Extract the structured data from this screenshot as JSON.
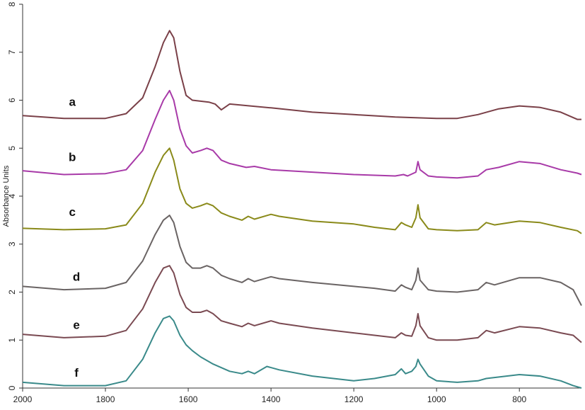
{
  "chart_data": {
    "type": "line",
    "title": "",
    "xlabel": "",
    "ylabel": "Absorbance Units",
    "xlim": [
      2000,
      650
    ],
    "ylim": [
      0,
      8
    ],
    "x_reversed": true,
    "grid": false,
    "xticks": [
      2000,
      1800,
      1600,
      1400,
      1200,
      1000,
      800
    ],
    "yticks": [
      0,
      1,
      2,
      3,
      4,
      5,
      6,
      7,
      8
    ],
    "series": [
      {
        "name": "a",
        "color": "#7a4048",
        "points": [
          [
            2000,
            5.68
          ],
          [
            1900,
            5.62
          ],
          [
            1800,
            5.62
          ],
          [
            1750,
            5.72
          ],
          [
            1710,
            6.05
          ],
          [
            1680,
            6.7
          ],
          [
            1660,
            7.2
          ],
          [
            1645,
            7.45
          ],
          [
            1635,
            7.3
          ],
          [
            1620,
            6.6
          ],
          [
            1605,
            6.1
          ],
          [
            1590,
            6.0
          ],
          [
            1570,
            5.98
          ],
          [
            1550,
            5.96
          ],
          [
            1535,
            5.92
          ],
          [
            1520,
            5.8
          ],
          [
            1500,
            5.92
          ],
          [
            1450,
            5.88
          ],
          [
            1400,
            5.84
          ],
          [
            1300,
            5.75
          ],
          [
            1200,
            5.7
          ],
          [
            1100,
            5.65
          ],
          [
            1000,
            5.62
          ],
          [
            950,
            5.62
          ],
          [
            900,
            5.7
          ],
          [
            850,
            5.82
          ],
          [
            800,
            5.88
          ],
          [
            750,
            5.85
          ],
          [
            700,
            5.75
          ],
          [
            660,
            5.6
          ],
          [
            650,
            5.6
          ]
        ]
      },
      {
        "name": "b",
        "color": "#a83aa8",
        "points": [
          [
            2000,
            4.53
          ],
          [
            1900,
            4.45
          ],
          [
            1800,
            4.47
          ],
          [
            1750,
            4.55
          ],
          [
            1710,
            4.95
          ],
          [
            1680,
            5.6
          ],
          [
            1660,
            6.0
          ],
          [
            1645,
            6.2
          ],
          [
            1635,
            6.0
          ],
          [
            1620,
            5.4
          ],
          [
            1605,
            5.05
          ],
          [
            1590,
            4.9
          ],
          [
            1570,
            4.95
          ],
          [
            1555,
            5.0
          ],
          [
            1540,
            4.95
          ],
          [
            1520,
            4.75
          ],
          [
            1500,
            4.68
          ],
          [
            1460,
            4.6
          ],
          [
            1440,
            4.62
          ],
          [
            1400,
            4.55
          ],
          [
            1300,
            4.5
          ],
          [
            1200,
            4.45
          ],
          [
            1100,
            4.42
          ],
          [
            1080,
            4.45
          ],
          [
            1070,
            4.42
          ],
          [
            1050,
            4.5
          ],
          [
            1045,
            4.72
          ],
          [
            1040,
            4.55
          ],
          [
            1020,
            4.42
          ],
          [
            1000,
            4.4
          ],
          [
            950,
            4.38
          ],
          [
            900,
            4.42
          ],
          [
            880,
            4.55
          ],
          [
            850,
            4.6
          ],
          [
            800,
            4.72
          ],
          [
            750,
            4.68
          ],
          [
            700,
            4.55
          ],
          [
            660,
            4.48
          ],
          [
            650,
            4.45
          ]
        ]
      },
      {
        "name": "c",
        "color": "#8a8a1a",
        "points": [
          [
            2000,
            3.33
          ],
          [
            1900,
            3.3
          ],
          [
            1800,
            3.32
          ],
          [
            1750,
            3.4
          ],
          [
            1710,
            3.85
          ],
          [
            1680,
            4.5
          ],
          [
            1660,
            4.85
          ],
          [
            1645,
            5.0
          ],
          [
            1635,
            4.75
          ],
          [
            1620,
            4.15
          ],
          [
            1605,
            3.85
          ],
          [
            1590,
            3.75
          ],
          [
            1570,
            3.8
          ],
          [
            1555,
            3.85
          ],
          [
            1540,
            3.8
          ],
          [
            1520,
            3.65
          ],
          [
            1500,
            3.58
          ],
          [
            1470,
            3.5
          ],
          [
            1455,
            3.58
          ],
          [
            1440,
            3.52
          ],
          [
            1400,
            3.62
          ],
          [
            1380,
            3.58
          ],
          [
            1300,
            3.48
          ],
          [
            1200,
            3.42
          ],
          [
            1150,
            3.35
          ],
          [
            1100,
            3.3
          ],
          [
            1085,
            3.45
          ],
          [
            1075,
            3.4
          ],
          [
            1060,
            3.35
          ],
          [
            1050,
            3.55
          ],
          [
            1045,
            3.82
          ],
          [
            1040,
            3.55
          ],
          [
            1020,
            3.32
          ],
          [
            1000,
            3.3
          ],
          [
            950,
            3.28
          ],
          [
            900,
            3.3
          ],
          [
            880,
            3.45
          ],
          [
            860,
            3.4
          ],
          [
            800,
            3.48
          ],
          [
            750,
            3.45
          ],
          [
            700,
            3.35
          ],
          [
            660,
            3.28
          ],
          [
            650,
            3.22
          ]
        ]
      },
      {
        "name": "d",
        "color": "#6a6464",
        "points": [
          [
            2000,
            2.12
          ],
          [
            1900,
            2.05
          ],
          [
            1800,
            2.08
          ],
          [
            1750,
            2.2
          ],
          [
            1710,
            2.65
          ],
          [
            1680,
            3.2
          ],
          [
            1660,
            3.5
          ],
          [
            1645,
            3.6
          ],
          [
            1635,
            3.45
          ],
          [
            1620,
            2.95
          ],
          [
            1605,
            2.62
          ],
          [
            1590,
            2.5
          ],
          [
            1570,
            2.5
          ],
          [
            1555,
            2.55
          ],
          [
            1540,
            2.5
          ],
          [
            1520,
            2.35
          ],
          [
            1500,
            2.28
          ],
          [
            1470,
            2.2
          ],
          [
            1455,
            2.28
          ],
          [
            1440,
            2.22
          ],
          [
            1400,
            2.32
          ],
          [
            1380,
            2.28
          ],
          [
            1300,
            2.2
          ],
          [
            1200,
            2.12
          ],
          [
            1150,
            2.08
          ],
          [
            1100,
            2.02
          ],
          [
            1085,
            2.15
          ],
          [
            1075,
            2.1
          ],
          [
            1060,
            2.05
          ],
          [
            1050,
            2.25
          ],
          [
            1045,
            2.5
          ],
          [
            1040,
            2.25
          ],
          [
            1020,
            2.05
          ],
          [
            1000,
            2.02
          ],
          [
            950,
            2.0
          ],
          [
            900,
            2.05
          ],
          [
            880,
            2.2
          ],
          [
            860,
            2.15
          ],
          [
            800,
            2.3
          ],
          [
            750,
            2.3
          ],
          [
            700,
            2.2
          ],
          [
            670,
            2.05
          ],
          [
            650,
            1.72
          ]
        ]
      },
      {
        "name": "e",
        "color": "#7a4a52",
        "points": [
          [
            2000,
            1.12
          ],
          [
            1900,
            1.05
          ],
          [
            1800,
            1.08
          ],
          [
            1750,
            1.2
          ],
          [
            1710,
            1.65
          ],
          [
            1680,
            2.2
          ],
          [
            1660,
            2.5
          ],
          [
            1645,
            2.55
          ],
          [
            1635,
            2.4
          ],
          [
            1620,
            1.95
          ],
          [
            1605,
            1.68
          ],
          [
            1590,
            1.58
          ],
          [
            1570,
            1.58
          ],
          [
            1555,
            1.62
          ],
          [
            1540,
            1.55
          ],
          [
            1520,
            1.4
          ],
          [
            1500,
            1.35
          ],
          [
            1470,
            1.28
          ],
          [
            1455,
            1.35
          ],
          [
            1440,
            1.3
          ],
          [
            1400,
            1.4
          ],
          [
            1380,
            1.35
          ],
          [
            1300,
            1.25
          ],
          [
            1200,
            1.15
          ],
          [
            1150,
            1.1
          ],
          [
            1100,
            1.05
          ],
          [
            1085,
            1.15
          ],
          [
            1075,
            1.1
          ],
          [
            1060,
            1.08
          ],
          [
            1050,
            1.3
          ],
          [
            1045,
            1.55
          ],
          [
            1040,
            1.3
          ],
          [
            1020,
            1.05
          ],
          [
            1000,
            1.0
          ],
          [
            950,
            1.0
          ],
          [
            900,
            1.05
          ],
          [
            880,
            1.2
          ],
          [
            860,
            1.15
          ],
          [
            800,
            1.28
          ],
          [
            750,
            1.25
          ],
          [
            700,
            1.15
          ],
          [
            670,
            1.1
          ],
          [
            650,
            0.95
          ]
        ]
      },
      {
        "name": "f",
        "color": "#3a8a8a",
        "points": [
          [
            2000,
            0.12
          ],
          [
            1900,
            0.05
          ],
          [
            1800,
            0.05
          ],
          [
            1750,
            0.15
          ],
          [
            1710,
            0.6
          ],
          [
            1680,
            1.15
          ],
          [
            1660,
            1.45
          ],
          [
            1645,
            1.5
          ],
          [
            1635,
            1.4
          ],
          [
            1620,
            1.1
          ],
          [
            1605,
            0.9
          ],
          [
            1590,
            0.78
          ],
          [
            1570,
            0.65
          ],
          [
            1540,
            0.5
          ],
          [
            1500,
            0.35
          ],
          [
            1470,
            0.3
          ],
          [
            1455,
            0.35
          ],
          [
            1440,
            0.3
          ],
          [
            1410,
            0.45
          ],
          [
            1380,
            0.38
          ],
          [
            1300,
            0.25
          ],
          [
            1200,
            0.15
          ],
          [
            1150,
            0.2
          ],
          [
            1100,
            0.28
          ],
          [
            1085,
            0.4
          ],
          [
            1075,
            0.3
          ],
          [
            1060,
            0.35
          ],
          [
            1050,
            0.45
          ],
          [
            1045,
            0.6
          ],
          [
            1040,
            0.5
          ],
          [
            1020,
            0.25
          ],
          [
            1000,
            0.15
          ],
          [
            950,
            0.12
          ],
          [
            900,
            0.15
          ],
          [
            880,
            0.2
          ],
          [
            860,
            0.22
          ],
          [
            800,
            0.28
          ],
          [
            750,
            0.25
          ],
          [
            700,
            0.15
          ],
          [
            670,
            0.05
          ],
          [
            650,
            0.0
          ]
        ]
      }
    ],
    "series_labels": [
      {
        "text": "a",
        "x": 1880,
        "y": 5.95
      },
      {
        "text": "b",
        "x": 1880,
        "y": 4.8
      },
      {
        "text": "c",
        "x": 1880,
        "y": 3.65
      },
      {
        "text": "d",
        "x": 1870,
        "y": 2.3
      },
      {
        "text": "e",
        "x": 1870,
        "y": 1.3
      },
      {
        "text": "f",
        "x": 1870,
        "y": 0.3
      }
    ]
  }
}
